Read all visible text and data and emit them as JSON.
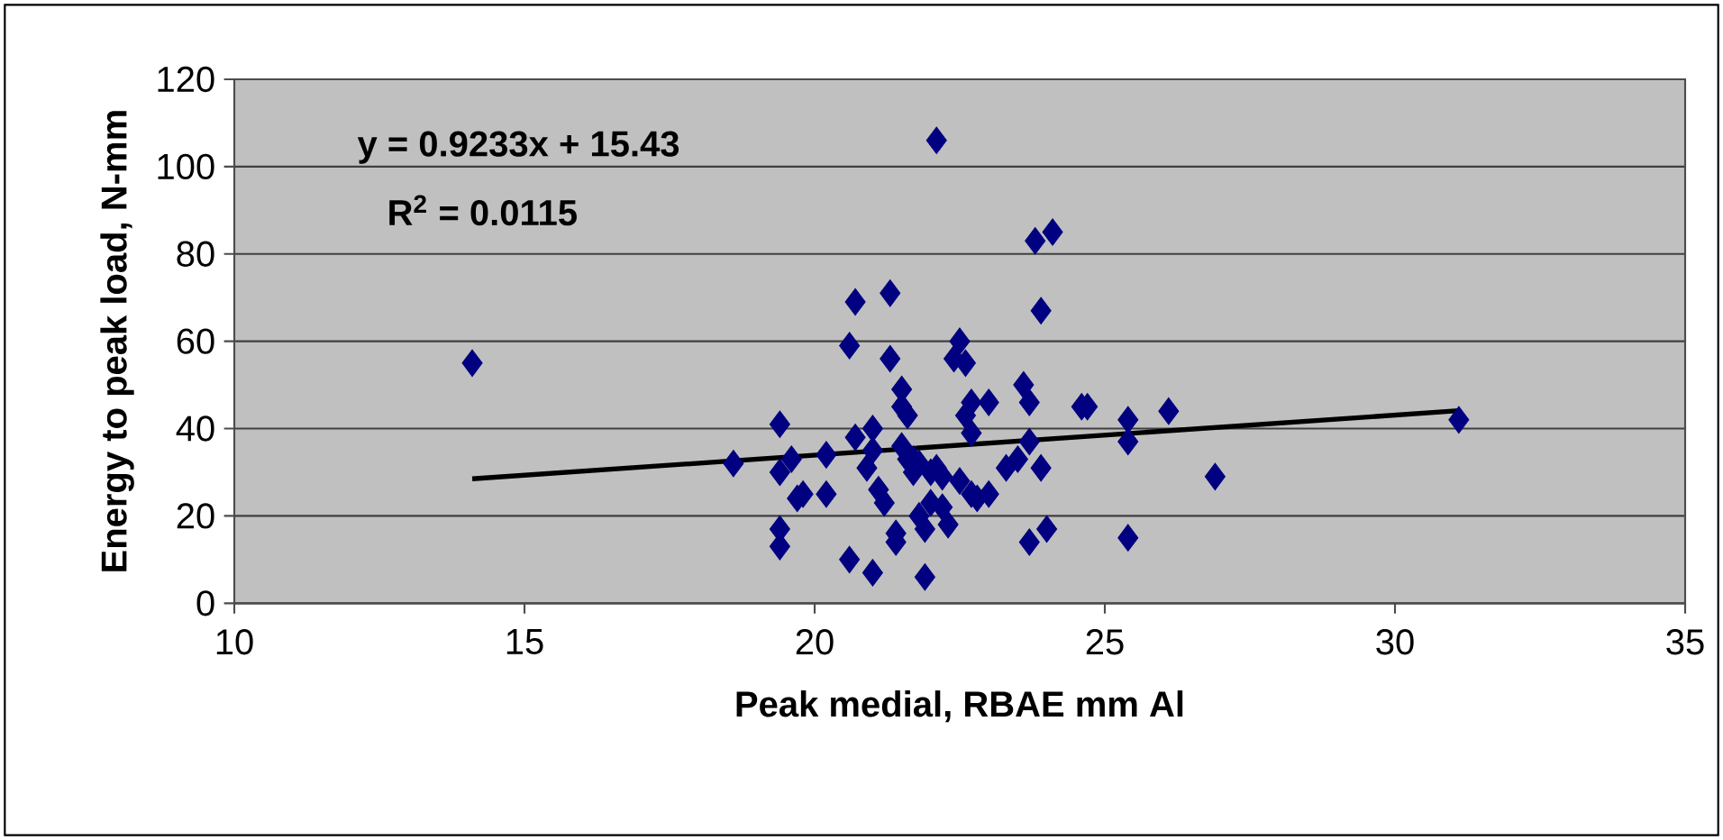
{
  "chart_data": {
    "type": "scatter",
    "xlabel": "Peak medial, RBAE mm Al",
    "ylabel": "Energy to peak load, N-mm",
    "xlim": [
      10,
      35
    ],
    "xticks": [
      10,
      15,
      20,
      25,
      30,
      35
    ],
    "ylim": [
      0,
      120
    ],
    "yticks": [
      0,
      20,
      40,
      60,
      80,
      100,
      120
    ],
    "grid": "y",
    "annotations": [
      "y = 0.9233x + 15.43",
      "R$^{2}$ = 0.0115"
    ],
    "series": [
      {
        "marker": "diamond",
        "color": "#000080",
        "x": [
          14.1,
          18.6,
          19.4,
          19.4,
          19.4,
          19.4,
          19.6,
          19.8,
          19.7,
          20.2,
          20.2,
          20.6,
          20.7,
          20.6,
          20.7,
          20.9,
          21.0,
          21.0,
          21.1,
          21.2,
          21.0,
          21.3,
          21.3,
          21.4,
          21.4,
          21.5,
          21.5,
          21.6,
          21.5,
          21.7,
          21.7,
          21.8,
          21.8,
          21.9,
          22.0,
          21.9,
          22.1,
          22.1,
          22.2,
          22.2,
          22.3,
          22.4,
          22.5,
          22.5,
          22.6,
          22.6,
          22.7,
          22.7,
          22.7,
          22.8,
          23.0,
          23.0,
          23.3,
          23.5,
          23.6,
          23.7,
          23.7,
          23.7,
          23.8,
          23.9,
          23.9,
          24.1,
          24.0,
          24.6,
          24.7,
          25.4,
          25.4,
          25.4,
          26.1,
          26.9,
          31.1,
          22.0,
          21.6
        ],
        "values": [
          55,
          32,
          41,
          30,
          17,
          13,
          33,
          25,
          24,
          25,
          34,
          59,
          69,
          10,
          38,
          31,
          40,
          35,
          26,
          23,
          7,
          71,
          56,
          16,
          14,
          49,
          45,
          43,
          36,
          33,
          30,
          32,
          20,
          6,
          23,
          17,
          106,
          31,
          22,
          29,
          18,
          56,
          60,
          28,
          55,
          43,
          46,
          39,
          25,
          24,
          46,
          25,
          31,
          33,
          50,
          46,
          14,
          37,
          83,
          67,
          31,
          85,
          17,
          45,
          45,
          42,
          37,
          15,
          44,
          29,
          42,
          30,
          33
        ]
      },
      {
        "type": "line",
        "marker": "none",
        "line_style": "solid",
        "color": "#000000",
        "x": [
          14.1,
          31.1
        ],
        "values": [
          28.5,
          44.1
        ]
      }
    ]
  }
}
